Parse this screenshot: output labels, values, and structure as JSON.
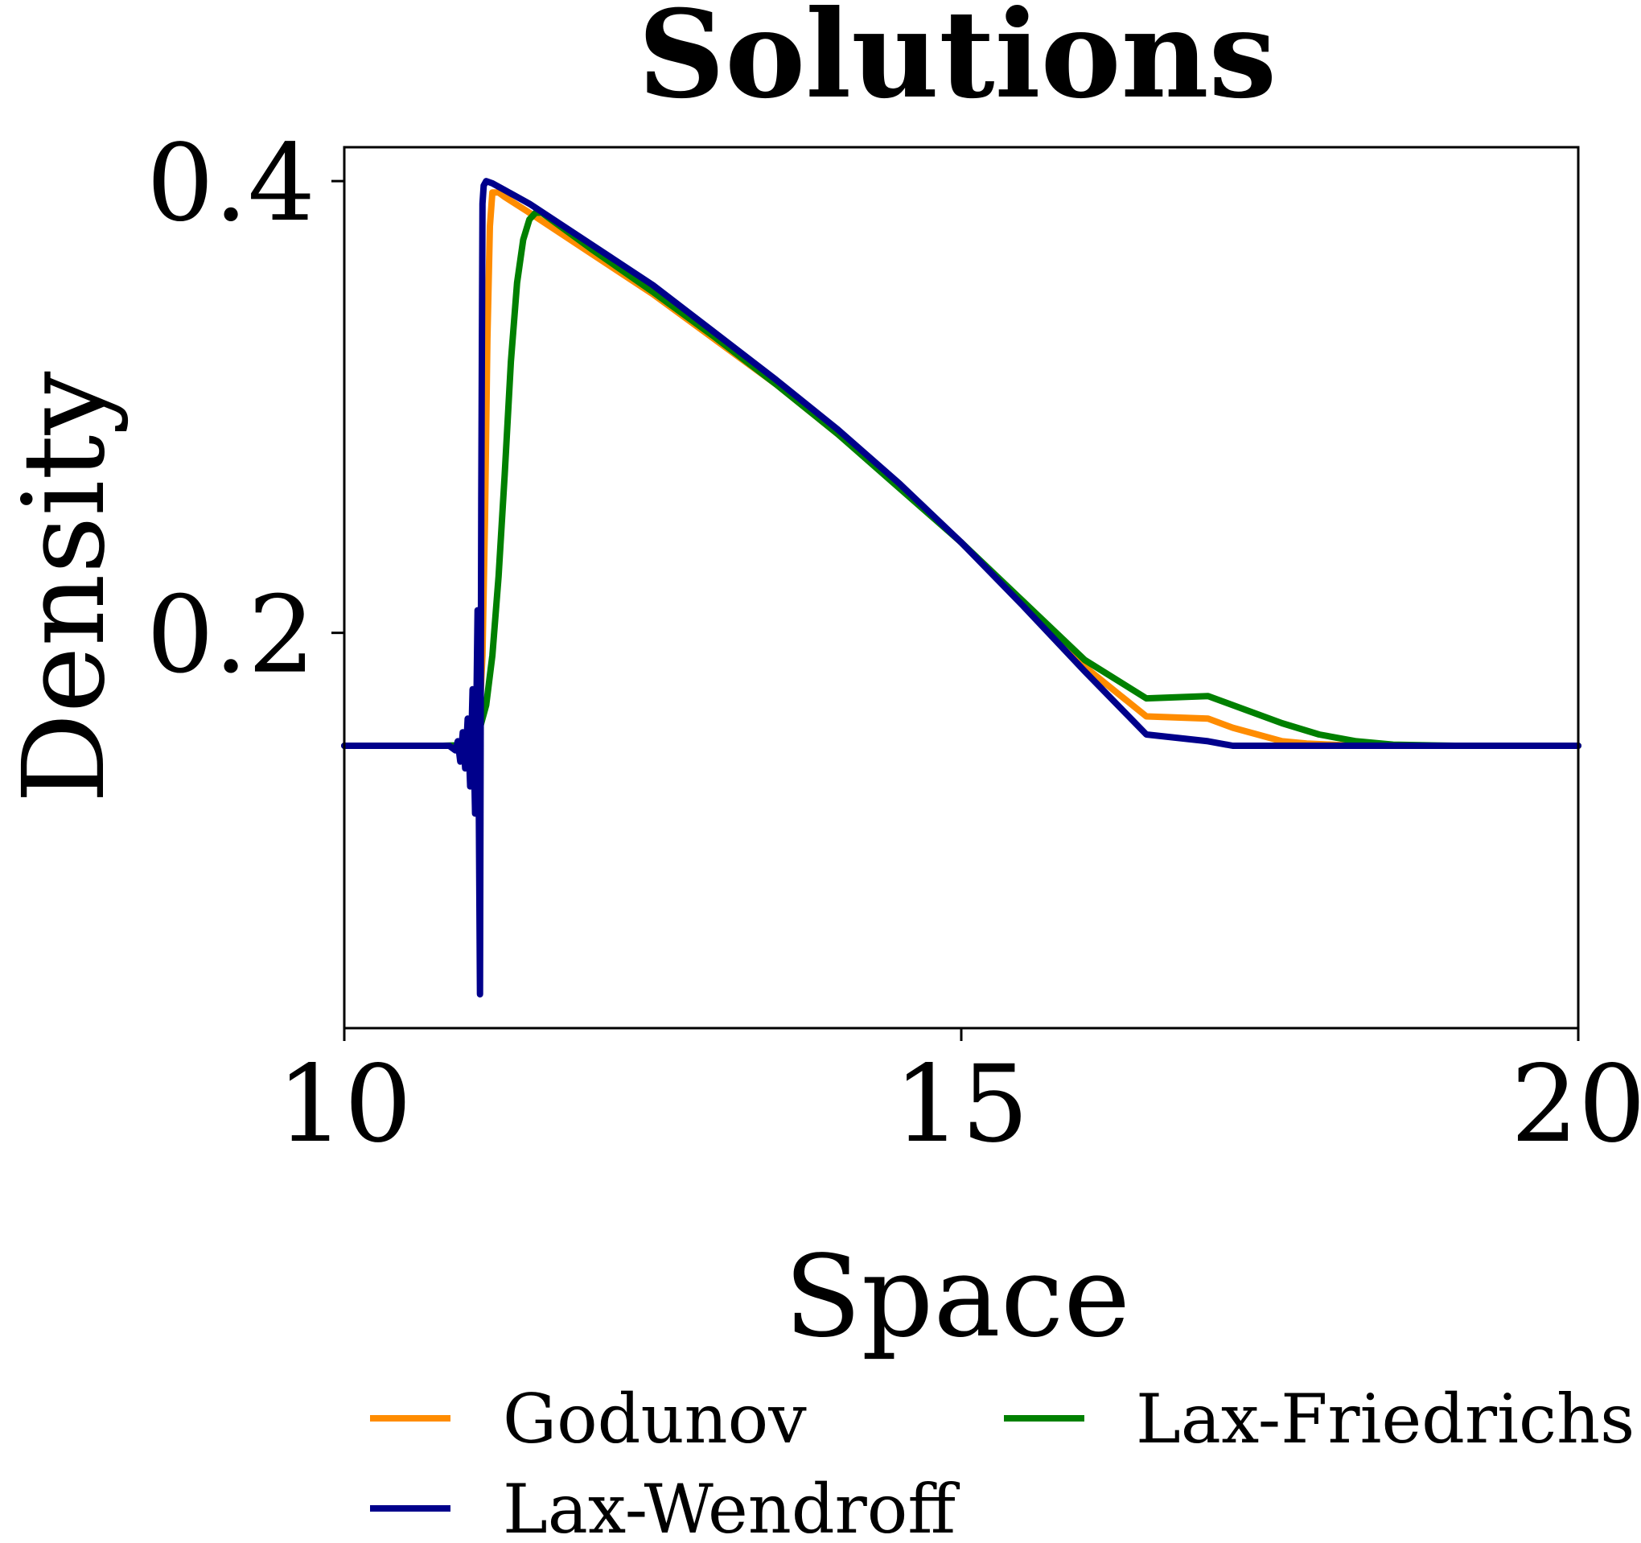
{
  "chart_data": {
    "type": "line",
    "title": "Solutions",
    "xlabel": "Space",
    "ylabel": "Density",
    "xlim": [
      10,
      20
    ],
    "ylim": [
      0.025,
      0.415
    ],
    "xticks": [
      10,
      15,
      20
    ],
    "xtick_labels": [
      "10",
      "15",
      "20"
    ],
    "yticks": [
      0.2,
      0.4
    ],
    "ytick_labels": [
      "0.2",
      "0.4"
    ],
    "grid": false,
    "legend_placement": "bottom",
    "series": [
      {
        "name": "Godunov",
        "color": "#ff8c00",
        "x": [
          10,
          10.9,
          11.0,
          11.05,
          11.08,
          11.1,
          11.12,
          11.14,
          11.16,
          11.18,
          11.2,
          11.25,
          11.3,
          11.5,
          12,
          12.5,
          13,
          13.5,
          14,
          14.5,
          15,
          15.5,
          16,
          16.5,
          17,
          17.2,
          17.4,
          17.6,
          17.8,
          18,
          18.2,
          18.5,
          20
        ],
        "y": [
          0.15,
          0.15,
          0.152,
          0.155,
          0.16,
          0.168,
          0.19,
          0.25,
          0.33,
          0.38,
          0.395,
          0.395,
          0.393,
          0.386,
          0.368,
          0.35,
          0.33,
          0.31,
          0.288,
          0.265,
          0.24,
          0.213,
          0.185,
          0.163,
          0.162,
          0.158,
          0.155,
          0.152,
          0.151,
          0.1505,
          0.15,
          0.15,
          0.15
        ]
      },
      {
        "name": "Lax-Friedrichs",
        "color": "#008000",
        "x": [
          10,
          10.8,
          10.9,
          11.0,
          11.05,
          11.1,
          11.15,
          11.2,
          11.25,
          11.3,
          11.35,
          11.4,
          11.45,
          11.5,
          11.55,
          11.6,
          12,
          12.5,
          13,
          13.5,
          14,
          14.5,
          15,
          15.5,
          16,
          16.5,
          17,
          17.3,
          17.6,
          17.9,
          18.2,
          18.5,
          19,
          20
        ],
        "y": [
          0.15,
          0.15,
          0.1502,
          0.151,
          0.153,
          0.158,
          0.168,
          0.19,
          0.225,
          0.27,
          0.32,
          0.355,
          0.374,
          0.383,
          0.386,
          0.386,
          0.37,
          0.351,
          0.331,
          0.31,
          0.288,
          0.264,
          0.24,
          0.214,
          0.188,
          0.171,
          0.172,
          0.166,
          0.16,
          0.155,
          0.152,
          0.1505,
          0.15,
          0.15
        ]
      },
      {
        "name": "Lax-Wendroff",
        "color": "#00008b",
        "x": [
          10,
          10.85,
          10.9,
          10.92,
          10.94,
          10.96,
          10.98,
          11.0,
          11.02,
          11.04,
          11.06,
          11.08,
          11.1,
          11.11,
          11.12,
          11.13,
          11.15,
          11.2,
          11.3,
          11.5,
          12,
          12.5,
          13,
          13.5,
          14,
          14.5,
          15,
          15.5,
          16,
          16.5,
          17,
          17.2,
          17.4,
          17.6,
          17.8,
          18,
          20
        ],
        "y": [
          0.15,
          0.15,
          0.148,
          0.152,
          0.143,
          0.156,
          0.14,
          0.162,
          0.132,
          0.175,
          0.12,
          0.21,
          0.04,
          0.26,
          0.39,
          0.398,
          0.4,
          0.399,
          0.396,
          0.39,
          0.372,
          0.354,
          0.333,
          0.312,
          0.29,
          0.266,
          0.24,
          0.212,
          0.183,
          0.155,
          0.152,
          0.15,
          0.15,
          0.15,
          0.15,
          0.15,
          0.15
        ]
      }
    ]
  }
}
